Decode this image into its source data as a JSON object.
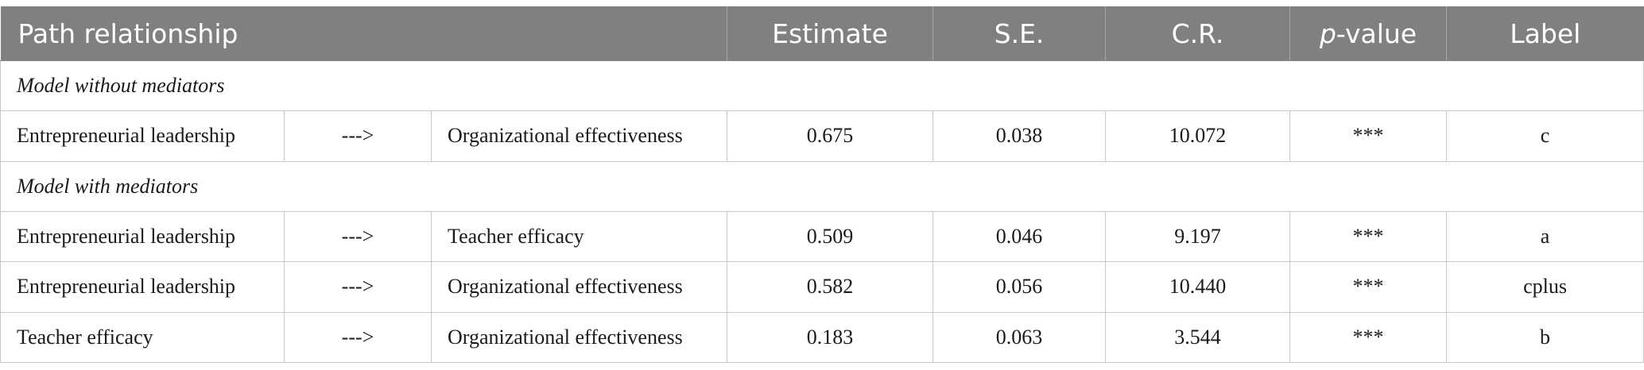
{
  "header": {
    "path": "Path relationship",
    "estimate": "Estimate",
    "se": "S.E.",
    "cr": "C.R.",
    "p_italic": "p",
    "p_rest": "-value",
    "label": "Label"
  },
  "sections": [
    {
      "title": "Model without mediators",
      "rows": [
        {
          "from": "Entrepreneurial leadership",
          "arrow": "--->",
          "to": "Organizational effectiveness",
          "estimate": "0.675",
          "se": "0.038",
          "cr": "10.072",
          "p": "***",
          "label": "c"
        }
      ]
    },
    {
      "title": "Model with mediators",
      "rows": [
        {
          "from": "Entrepreneurial leadership",
          "arrow": "--->",
          "to": "Teacher efficacy",
          "estimate": "0.509",
          "se": "0.046",
          "cr": "9.197",
          "p": "***",
          "label": "a"
        },
        {
          "from": "Entrepreneurial leadership",
          "arrow": "--->",
          "to": "Organizational effectiveness",
          "estimate": "0.582",
          "se": "0.056",
          "cr": "10.440",
          "p": "***",
          "label": "cplus"
        },
        {
          "from": "Teacher efficacy",
          "arrow": "--->",
          "to": "Organizational effectiveness",
          "estimate": "0.183",
          "se": "0.063",
          "cr": "3.544",
          "p": "***",
          "label": "b"
        }
      ]
    }
  ]
}
